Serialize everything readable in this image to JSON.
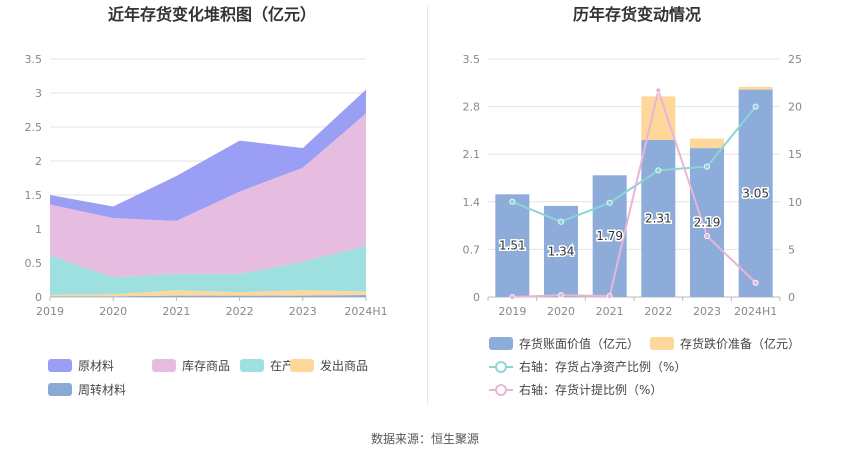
{
  "chart_data": [
    {
      "type": "area",
      "stacked": true,
      "title": "近年存货变化堆积图（亿元）",
      "categories": [
        "2019",
        "2020",
        "2021",
        "2022",
        "2023",
        "2024H1"
      ],
      "ylim": [
        0,
        3.5
      ],
      "yticks": [
        "0",
        "0.5",
        "1",
        "1.5",
        "2",
        "2.5",
        "3",
        "3.5"
      ],
      "grid": true,
      "legend_position": "bottom",
      "series": [
        {
          "name": "周转材料",
          "color": "#8aaad6",
          "values": [
            0.01,
            0.01,
            0.02,
            0.02,
            0.02,
            0.03
          ]
        },
        {
          "name": "发出商品",
          "color": "#fdd89a",
          "values": [
            0.02,
            0.03,
            0.08,
            0.05,
            0.08,
            0.05
          ]
        },
        {
          "name": "在产品",
          "color": "#9ee0e0",
          "values": [
            0.58,
            0.25,
            0.24,
            0.27,
            0.42,
            0.67
          ]
        },
        {
          "name": "库存商品",
          "color": "#e6bde0",
          "values": [
            0.75,
            0.87,
            0.78,
            1.21,
            1.38,
            1.95
          ]
        },
        {
          "name": "原材料",
          "color": "#9b9ef5",
          "values": [
            0.14,
            0.17,
            0.66,
            0.75,
            0.29,
            0.35
          ]
        }
      ],
      "legend_order": [
        "原材料",
        "库存商品",
        "在产品",
        "发出商品",
        "周转材料"
      ]
    },
    {
      "type": "bar",
      "stacked": true,
      "title": "历年存货变动情况",
      "categories": [
        "2019",
        "2020",
        "2021",
        "2022",
        "2023",
        "2024H1"
      ],
      "ylim": [
        0,
        3.5
      ],
      "yticks": [
        "0",
        "0.7",
        "1.4",
        "2.1",
        "2.8",
        "3.5"
      ],
      "y2lim": [
        0,
        25
      ],
      "y2ticks": [
        "0",
        "5",
        "10",
        "15",
        "20",
        "25"
      ],
      "grid": true,
      "legend_position": "bottom",
      "series": [
        {
          "name": "存货账面价值（亿元）",
          "kind": "bar",
          "axis": "left",
          "color": "#8dacd9",
          "values": [
            1.51,
            1.34,
            1.79,
            2.31,
            2.19,
            3.05
          ],
          "labels": [
            "1.51",
            "1.34",
            "1.79",
            "2.31",
            "2.19",
            "3.05"
          ]
        },
        {
          "name": "存货跌价准备（亿元）",
          "kind": "bar",
          "axis": "left",
          "color": "#fdd89a",
          "values": [
            0,
            0,
            0,
            0.64,
            0.14,
            0.04
          ]
        },
        {
          "name": "右轴：存货占净资产比例（%）",
          "kind": "line",
          "axis": "right",
          "color": "#8ad6d6",
          "values": [
            10.0,
            7.9,
            9.9,
            13.3,
            13.7,
            20.0
          ]
        },
        {
          "name": "右轴：存货计提比例（%）",
          "kind": "line",
          "axis": "right",
          "color": "#e8b5d8",
          "values": [
            0.0,
            0.2,
            0.1,
            21.7,
            6.4,
            1.5
          ]
        }
      ]
    }
  ],
  "source_text": "数据来源：恒生聚源"
}
